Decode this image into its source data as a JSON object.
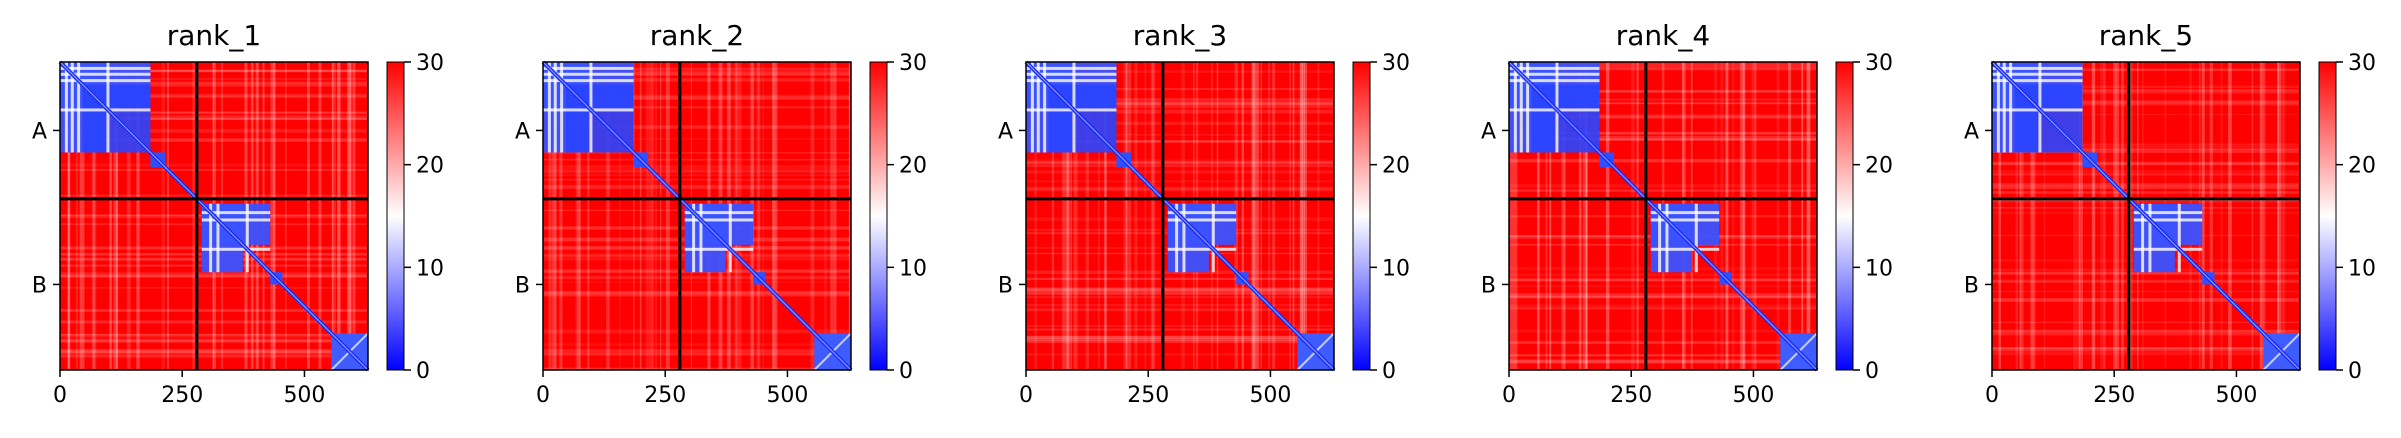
{
  "chart_data": [
    {
      "type": "heatmap",
      "title": "rank_1",
      "chain_labels": [
        "A",
        "B"
      ],
      "x_ticks": [
        0,
        250,
        500
      ],
      "xlim": [
        0,
        630
      ],
      "chain_boundary": 280,
      "colorbar": {
        "ticks": [
          0,
          10,
          20,
          30
        ],
        "range": [
          0,
          30
        ],
        "colors": [
          "#0000ff",
          "#ffffff",
          "#ff0000"
        ]
      },
      "variant": 0
    },
    {
      "type": "heatmap",
      "title": "rank_2",
      "chain_labels": [
        "A",
        "B"
      ],
      "x_ticks": [
        0,
        250,
        500
      ],
      "xlim": [
        0,
        630
      ],
      "chain_boundary": 280,
      "colorbar": {
        "ticks": [
          0,
          10,
          20,
          30
        ],
        "range": [
          0,
          30
        ],
        "colors": [
          "#0000ff",
          "#ffffff",
          "#ff0000"
        ]
      },
      "variant": 1
    },
    {
      "type": "heatmap",
      "title": "rank_3",
      "chain_labels": [
        "A",
        "B"
      ],
      "x_ticks": [
        0,
        250,
        500
      ],
      "xlim": [
        0,
        630
      ],
      "chain_boundary": 280,
      "colorbar": {
        "ticks": [
          0,
          10,
          20,
          30
        ],
        "range": [
          0,
          30
        ],
        "colors": [
          "#0000ff",
          "#ffffff",
          "#ff0000"
        ]
      },
      "variant": 2
    },
    {
      "type": "heatmap",
      "title": "rank_4",
      "chain_labels": [
        "A",
        "B"
      ],
      "x_ticks": [
        0,
        250,
        500
      ],
      "xlim": [
        0,
        630
      ],
      "chain_boundary": 280,
      "colorbar": {
        "ticks": [
          0,
          10,
          20,
          30
        ],
        "range": [
          0,
          30
        ],
        "colors": [
          "#0000ff",
          "#ffffff",
          "#ff0000"
        ]
      },
      "variant": 3
    },
    {
      "type": "heatmap",
      "title": "rank_5",
      "chain_labels": [
        "A",
        "B"
      ],
      "x_ticks": [
        0,
        250,
        500
      ],
      "xlim": [
        0,
        630
      ],
      "chain_boundary": 280,
      "colorbar": {
        "ticks": [
          0,
          10,
          20,
          30
        ],
        "range": [
          0,
          30
        ],
        "colors": [
          "#0000ff",
          "#ffffff",
          "#ff0000"
        ]
      },
      "variant": 4
    }
  ]
}
